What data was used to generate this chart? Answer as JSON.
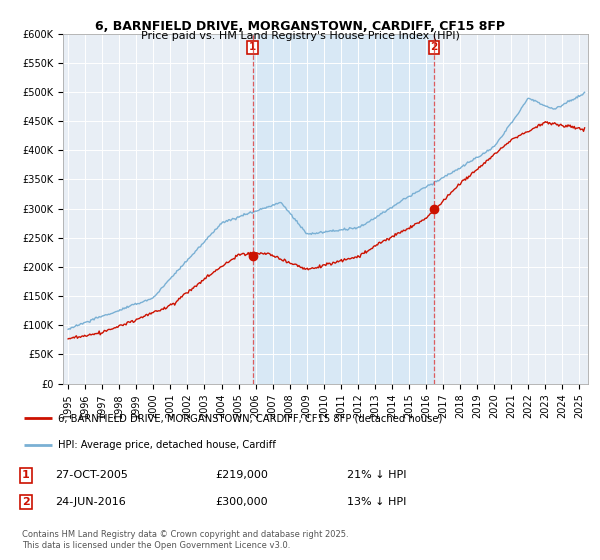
{
  "title": "6, BARNFIELD DRIVE, MORGANSTOWN, CARDIFF, CF15 8FP",
  "subtitle": "Price paid vs. HM Land Registry's House Price Index (HPI)",
  "hpi_color": "#7ab0d4",
  "hpi_fill_color": "#d6e8f5",
  "property_color": "#cc1100",
  "sale1_date_label": "27-OCT-2005",
  "sale1_price": 219000,
  "sale1_hpi_pct": "21% ↓ HPI",
  "sale1_year": 2005.82,
  "sale2_date_label": "24-JUN-2016",
  "sale2_price": 300000,
  "sale2_hpi_pct": "13% ↓ HPI",
  "sale2_year": 2016.48,
  "ylim": [
    0,
    600000
  ],
  "xlim_start": 1994.7,
  "xlim_end": 2025.5,
  "ylabel_ticks": [
    0,
    50000,
    100000,
    150000,
    200000,
    250000,
    300000,
    350000,
    400000,
    450000,
    500000,
    550000,
    600000
  ],
  "ylabel_labels": [
    "£0",
    "£50K",
    "£100K",
    "£150K",
    "£200K",
    "£250K",
    "£300K",
    "£350K",
    "£400K",
    "£450K",
    "£500K",
    "£550K",
    "£600K"
  ],
  "xtick_years": [
    1995,
    1996,
    1997,
    1998,
    1999,
    2000,
    2001,
    2002,
    2003,
    2004,
    2005,
    2006,
    2007,
    2008,
    2009,
    2010,
    2011,
    2012,
    2013,
    2014,
    2015,
    2016,
    2017,
    2018,
    2019,
    2020,
    2021,
    2022,
    2023,
    2024,
    2025
  ],
  "copyright_text": "Contains HM Land Registry data © Crown copyright and database right 2025.\nThis data is licensed under the Open Government Licence v3.0.",
  "legend_line1": "6, BARNFIELD DRIVE, MORGANSTOWN, CARDIFF, CF15 8FP (detached house)",
  "legend_line2": "HPI: Average price, detached house, Cardiff",
  "bg_color": "#e8eef5",
  "grid_color": "#ffffff",
  "vline_color": "#dd4444"
}
